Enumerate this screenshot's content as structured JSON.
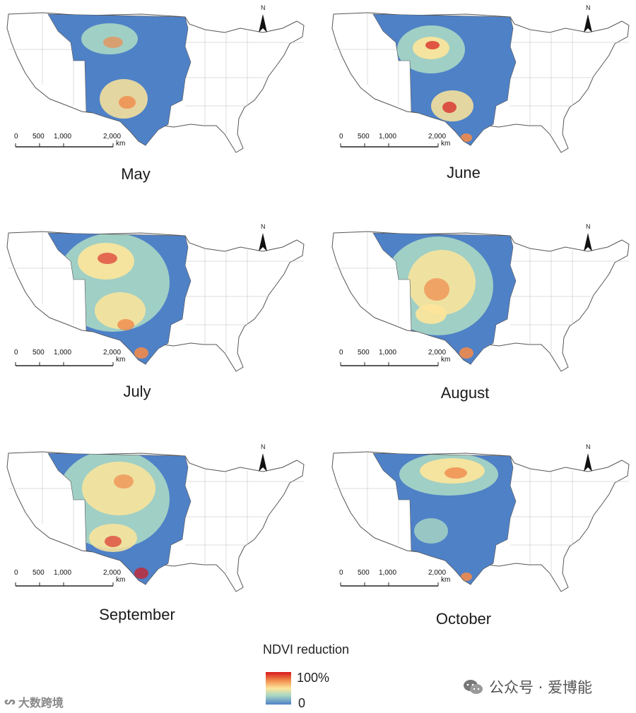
{
  "scale_bar": {
    "ticks": [
      "0",
      "500",
      "1,000",
      "2,000"
    ],
    "unit": "km"
  },
  "north_label": "N",
  "panels": [
    {
      "month": "May",
      "hotspots": [
        "north-plains",
        "south-plains"
      ]
    },
    {
      "month": "June",
      "hotspots": [
        "north-plains",
        "south-plains",
        "texas-coast"
      ]
    },
    {
      "month": "July",
      "hotspots": [
        "north-plains",
        "central-plains",
        "south-plains",
        "texas-coast"
      ]
    },
    {
      "month": "August",
      "hotspots": [
        "north-plains",
        "central-plains",
        "south-plains",
        "texas-coast"
      ]
    },
    {
      "month": "September",
      "hotspots": [
        "north-plains",
        "central-plains",
        "south-plains",
        "texas-coast"
      ]
    },
    {
      "month": "October",
      "hotspots": [
        "north-plains",
        "texas-coast"
      ]
    }
  ],
  "legend": {
    "title": "NDVI reduction",
    "max_label": "100%",
    "min_label": "0",
    "colors": [
      "#d7191c",
      "#f08a4b",
      "#fde59a",
      "#a9d7c4",
      "#4f81c7"
    ]
  },
  "watermark_right": "公众号 · 爱博能",
  "watermark_left": "大数跨境"
}
